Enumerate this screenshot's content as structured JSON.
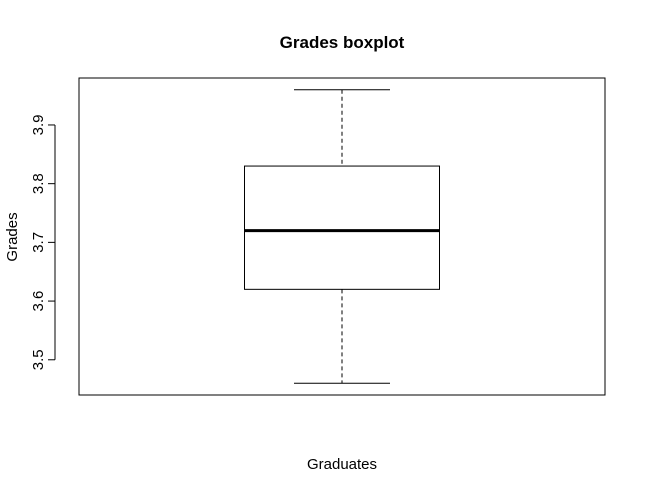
{
  "chart_data": {
    "type": "boxplot",
    "title": "Grades boxplot",
    "xlabel": "Graduates",
    "ylabel": "Grades",
    "ylim": [
      3.44,
      3.98
    ],
    "y_ticks": [
      3.5,
      3.6,
      3.7,
      3.8,
      3.9
    ],
    "y_tick_labels": [
      "3.5",
      "3.6",
      "3.7",
      "3.8",
      "3.9"
    ],
    "series": [
      {
        "min": 3.46,
        "q1": 3.62,
        "median": 3.72,
        "q3": 3.83,
        "max": 3.96
      }
    ],
    "grid": false,
    "colors": {
      "box_fill": "#ffffff",
      "stroke": "#000000"
    }
  }
}
